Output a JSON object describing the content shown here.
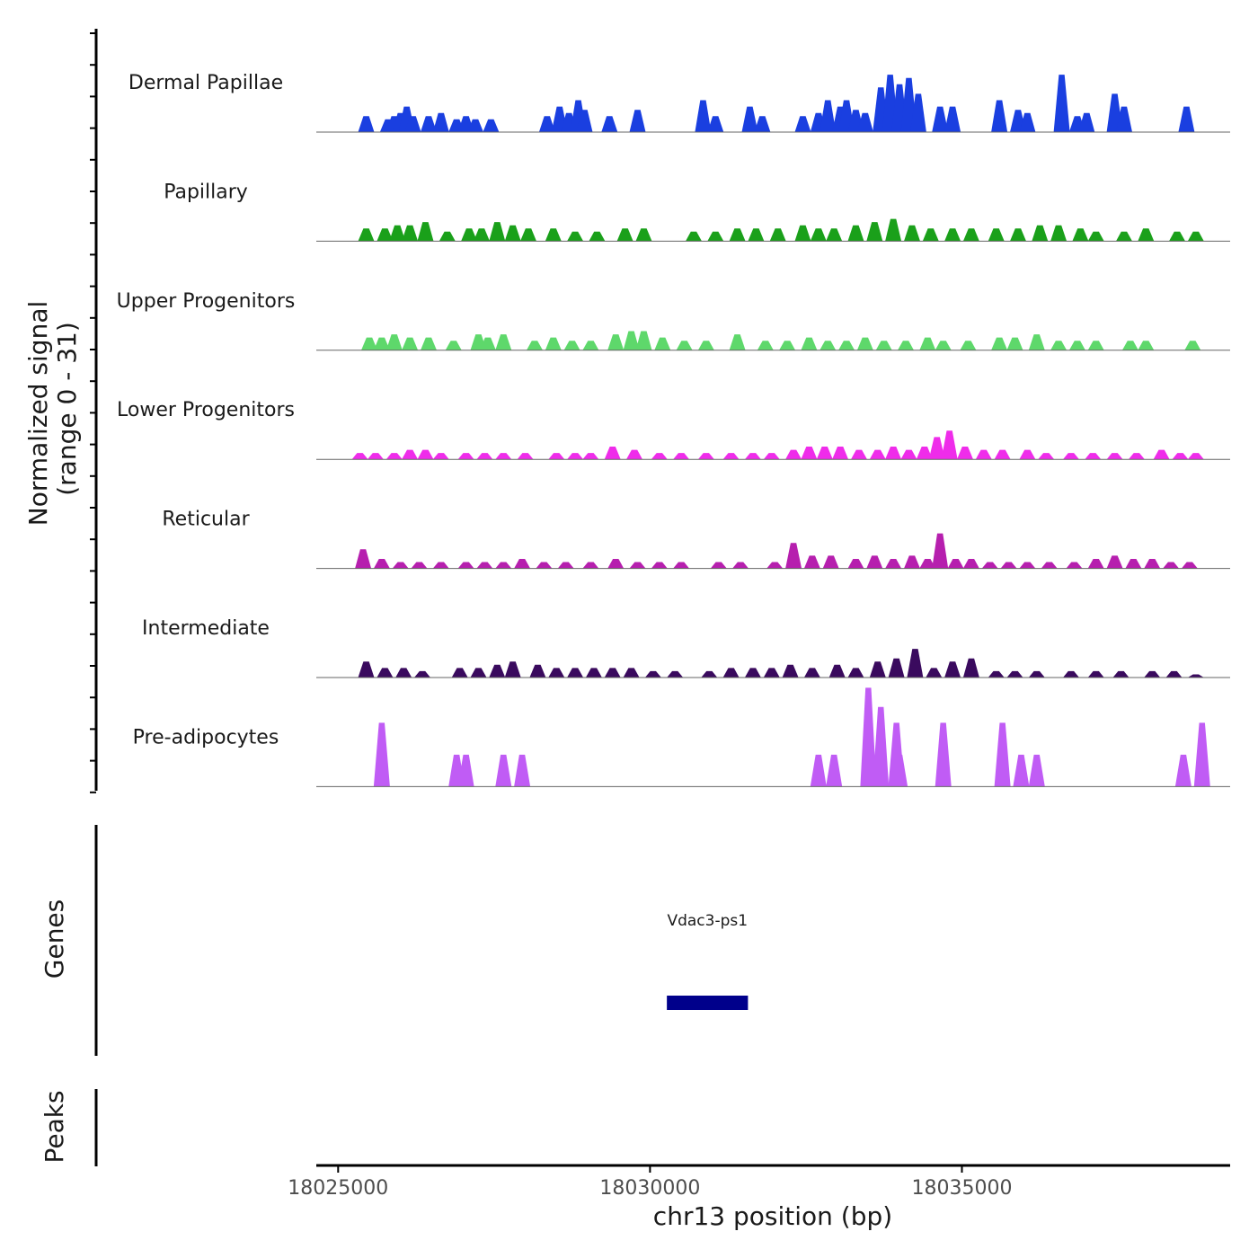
{
  "chart_data": {
    "type": "area",
    "title": "",
    "ylabel_line1": "Normalized signal",
    "ylabel_line2": "(range 0 - 31)",
    "ylim": [
      0,
      31
    ],
    "xlabel": "chr13 position (bp)",
    "xlim": [
      18024650,
      18039300
    ],
    "xticks": [
      18025000,
      18030000,
      18035000
    ],
    "xtick_labels": [
      "18025000",
      "18030000",
      "18035000"
    ],
    "genes_label": "Genes",
    "peaks_label": "Peaks",
    "genes": [
      {
        "name": "Vdac3-ps1",
        "start": 18030270,
        "end": 18031570,
        "color": "#00008B"
      }
    ],
    "tracks": [
      {
        "name": "Dermal Papillae",
        "color": "#1A3FE0",
        "peaks": [
          [
            18025450,
            5
          ],
          [
            18025800,
            4
          ],
          [
            18025900,
            5
          ],
          [
            18026000,
            6
          ],
          [
            18026100,
            8
          ],
          [
            18026200,
            5
          ],
          [
            18026450,
            5
          ],
          [
            18026650,
            6
          ],
          [
            18026900,
            4
          ],
          [
            18027050,
            5
          ],
          [
            18027200,
            4
          ],
          [
            18027450,
            4
          ],
          [
            18028350,
            5
          ],
          [
            18028550,
            8
          ],
          [
            18028700,
            6
          ],
          [
            18028850,
            10
          ],
          [
            18028950,
            7
          ],
          [
            18029350,
            5
          ],
          [
            18029800,
            7
          ],
          [
            18030850,
            10
          ],
          [
            18031050,
            5
          ],
          [
            18031600,
            8
          ],
          [
            18031800,
            5
          ],
          [
            18032450,
            5
          ],
          [
            18032700,
            6
          ],
          [
            18032850,
            10
          ],
          [
            18033050,
            8
          ],
          [
            18033150,
            10
          ],
          [
            18033300,
            7
          ],
          [
            18033450,
            6
          ],
          [
            18033700,
            14
          ],
          [
            18033850,
            18
          ],
          [
            18034000,
            15
          ],
          [
            18034150,
            17
          ],
          [
            18034300,
            12
          ],
          [
            18034650,
            8
          ],
          [
            18034850,
            8
          ],
          [
            18035600,
            10
          ],
          [
            18035900,
            7
          ],
          [
            18036050,
            6
          ],
          [
            18036600,
            18
          ],
          [
            18036850,
            5
          ],
          [
            18037000,
            6
          ],
          [
            18037450,
            12
          ],
          [
            18037600,
            8
          ],
          [
            18038600,
            8
          ]
        ]
      },
      {
        "name": "Papillary",
        "color": "#1AA01A",
        "peaks": [
          [
            18025450,
            4
          ],
          [
            18025750,
            4
          ],
          [
            18025950,
            5
          ],
          [
            18026150,
            5
          ],
          [
            18026400,
            6
          ],
          [
            18026750,
            3
          ],
          [
            18027100,
            4
          ],
          [
            18027300,
            4
          ],
          [
            18027550,
            6
          ],
          [
            18027800,
            5
          ],
          [
            18028050,
            4
          ],
          [
            18028450,
            4
          ],
          [
            18028800,
            3
          ],
          [
            18029150,
            3
          ],
          [
            18029600,
            4
          ],
          [
            18029900,
            4
          ],
          [
            18030700,
            3
          ],
          [
            18031050,
            3
          ],
          [
            18031400,
            4
          ],
          [
            18031700,
            4
          ],
          [
            18032050,
            4
          ],
          [
            18032450,
            5
          ],
          [
            18032700,
            4
          ],
          [
            18032950,
            4
          ],
          [
            18033300,
            5
          ],
          [
            18033600,
            6
          ],
          [
            18033900,
            7
          ],
          [
            18034200,
            5
          ],
          [
            18034500,
            4
          ],
          [
            18034850,
            4
          ],
          [
            18035150,
            4
          ],
          [
            18035550,
            4
          ],
          [
            18035900,
            4
          ],
          [
            18036250,
            5
          ],
          [
            18036550,
            5
          ],
          [
            18036900,
            4
          ],
          [
            18037150,
            3
          ],
          [
            18037600,
            3
          ],
          [
            18037950,
            4
          ],
          [
            18038450,
            3
          ],
          [
            18038750,
            3
          ]
        ]
      },
      {
        "name": "Upper Progenitors",
        "color": "#5ED86B",
        "peaks": [
          [
            18025500,
            4
          ],
          [
            18025700,
            4
          ],
          [
            18025900,
            5
          ],
          [
            18026150,
            4
          ],
          [
            18026450,
            4
          ],
          [
            18026850,
            3
          ],
          [
            18027250,
            5
          ],
          [
            18027400,
            4
          ],
          [
            18027650,
            5
          ],
          [
            18028150,
            3
          ],
          [
            18028450,
            4
          ],
          [
            18028750,
            3
          ],
          [
            18029050,
            3
          ],
          [
            18029450,
            5
          ],
          [
            18029700,
            6
          ],
          [
            18029900,
            6
          ],
          [
            18030200,
            4
          ],
          [
            18030550,
            3
          ],
          [
            18030900,
            3
          ],
          [
            18031400,
            5
          ],
          [
            18031850,
            3
          ],
          [
            18032200,
            3
          ],
          [
            18032550,
            4
          ],
          [
            18032850,
            3
          ],
          [
            18033150,
            3
          ],
          [
            18033450,
            4
          ],
          [
            18033750,
            3
          ],
          [
            18034100,
            3
          ],
          [
            18034450,
            4
          ],
          [
            18034700,
            3
          ],
          [
            18035100,
            3
          ],
          [
            18035600,
            4
          ],
          [
            18035850,
            4
          ],
          [
            18036200,
            5
          ],
          [
            18036550,
            3
          ],
          [
            18036850,
            3
          ],
          [
            18037150,
            3
          ],
          [
            18037700,
            3
          ],
          [
            18037950,
            3
          ],
          [
            18038700,
            3
          ]
        ]
      },
      {
        "name": "Lower Progenitors",
        "color": "#EF2CEA",
        "peaks": [
          [
            18025350,
            2
          ],
          [
            18025600,
            2
          ],
          [
            18025900,
            2
          ],
          [
            18026150,
            3
          ],
          [
            18026400,
            3
          ],
          [
            18026650,
            2
          ],
          [
            18027050,
            2
          ],
          [
            18027350,
            2
          ],
          [
            18027650,
            2
          ],
          [
            18028000,
            2
          ],
          [
            18028500,
            2
          ],
          [
            18028800,
            2
          ],
          [
            18029050,
            2
          ],
          [
            18029400,
            4
          ],
          [
            18029750,
            3
          ],
          [
            18030150,
            2
          ],
          [
            18030500,
            2
          ],
          [
            18030900,
            2
          ],
          [
            18031300,
            2
          ],
          [
            18031650,
            2
          ],
          [
            18031950,
            2
          ],
          [
            18032300,
            3
          ],
          [
            18032550,
            4
          ],
          [
            18032800,
            4
          ],
          [
            18033050,
            4
          ],
          [
            18033350,
            3
          ],
          [
            18033650,
            3
          ],
          [
            18033900,
            4
          ],
          [
            18034150,
            3
          ],
          [
            18034400,
            4
          ],
          [
            18034600,
            7
          ],
          [
            18034800,
            9
          ],
          [
            18035050,
            4
          ],
          [
            18035350,
            3
          ],
          [
            18035650,
            3
          ],
          [
            18036050,
            3
          ],
          [
            18036350,
            2
          ],
          [
            18036750,
            2
          ],
          [
            18037100,
            2
          ],
          [
            18037450,
            2
          ],
          [
            18037800,
            2
          ],
          [
            18038200,
            3
          ],
          [
            18038500,
            2
          ],
          [
            18038750,
            2
          ]
        ]
      },
      {
        "name": "Reticular",
        "color": "#B61FAE",
        "peaks": [
          [
            18025400,
            6
          ],
          [
            18025700,
            3
          ],
          [
            18026000,
            2
          ],
          [
            18026300,
            2
          ],
          [
            18026650,
            2
          ],
          [
            18027050,
            2
          ],
          [
            18027350,
            2
          ],
          [
            18027650,
            2
          ],
          [
            18027950,
            3
          ],
          [
            18028300,
            2
          ],
          [
            18028650,
            2
          ],
          [
            18029050,
            2
          ],
          [
            18029450,
            3
          ],
          [
            18029800,
            2
          ],
          [
            18030150,
            2
          ],
          [
            18030500,
            2
          ],
          [
            18031100,
            2
          ],
          [
            18031450,
            2
          ],
          [
            18032000,
            2
          ],
          [
            18032300,
            8
          ],
          [
            18032600,
            4
          ],
          [
            18032900,
            4
          ],
          [
            18033300,
            3
          ],
          [
            18033600,
            4
          ],
          [
            18033900,
            3
          ],
          [
            18034200,
            4
          ],
          [
            18034450,
            3
          ],
          [
            18034650,
            11
          ],
          [
            18034900,
            3
          ],
          [
            18035150,
            3
          ],
          [
            18035450,
            2
          ],
          [
            18035750,
            2
          ],
          [
            18036050,
            2
          ],
          [
            18036400,
            2
          ],
          [
            18036800,
            2
          ],
          [
            18037150,
            3
          ],
          [
            18037450,
            4
          ],
          [
            18037750,
            3
          ],
          [
            18038050,
            3
          ],
          [
            18038350,
            2
          ],
          [
            18038650,
            2
          ]
        ]
      },
      {
        "name": "Intermediate",
        "color": "#3A0A5E",
        "peaks": [
          [
            18025450,
            5
          ],
          [
            18025750,
            3
          ],
          [
            18026050,
            3
          ],
          [
            18026350,
            2
          ],
          [
            18026950,
            3
          ],
          [
            18027250,
            3
          ],
          [
            18027550,
            4
          ],
          [
            18027800,
            5
          ],
          [
            18028200,
            4
          ],
          [
            18028500,
            3
          ],
          [
            18028800,
            3
          ],
          [
            18029100,
            3
          ],
          [
            18029400,
            3
          ],
          [
            18029700,
            3
          ],
          [
            18030050,
            2
          ],
          [
            18030400,
            2
          ],
          [
            18030950,
            2
          ],
          [
            18031300,
            3
          ],
          [
            18031650,
            3
          ],
          [
            18031950,
            3
          ],
          [
            18032250,
            4
          ],
          [
            18032600,
            3
          ],
          [
            18033000,
            4
          ],
          [
            18033300,
            3
          ],
          [
            18033650,
            5
          ],
          [
            18033950,
            6
          ],
          [
            18034250,
            9
          ],
          [
            18034550,
            3
          ],
          [
            18034850,
            5
          ],
          [
            18035150,
            6
          ],
          [
            18035550,
            2
          ],
          [
            18035850,
            2
          ],
          [
            18036200,
            2
          ],
          [
            18036750,
            2
          ],
          [
            18037150,
            2
          ],
          [
            18037550,
            2
          ],
          [
            18038050,
            2
          ],
          [
            18038400,
            2
          ],
          [
            18038750,
            1
          ]
        ]
      },
      {
        "name": "Pre-adipocytes",
        "color": "#C05CF5",
        "peaks": [
          [
            18025700,
            20
          ],
          [
            18026900,
            10
          ],
          [
            18027050,
            10
          ],
          [
            18027650,
            10
          ],
          [
            18027950,
            10
          ],
          [
            18032700,
            10
          ],
          [
            18032950,
            10
          ],
          [
            18033500,
            31
          ],
          [
            18033700,
            25
          ],
          [
            18033950,
            20
          ],
          [
            18034000,
            10
          ],
          [
            18034700,
            20
          ],
          [
            18035650,
            20
          ],
          [
            18035950,
            10
          ],
          [
            18036200,
            10
          ],
          [
            18038550,
            10
          ],
          [
            18038850,
            20
          ]
        ]
      }
    ]
  }
}
